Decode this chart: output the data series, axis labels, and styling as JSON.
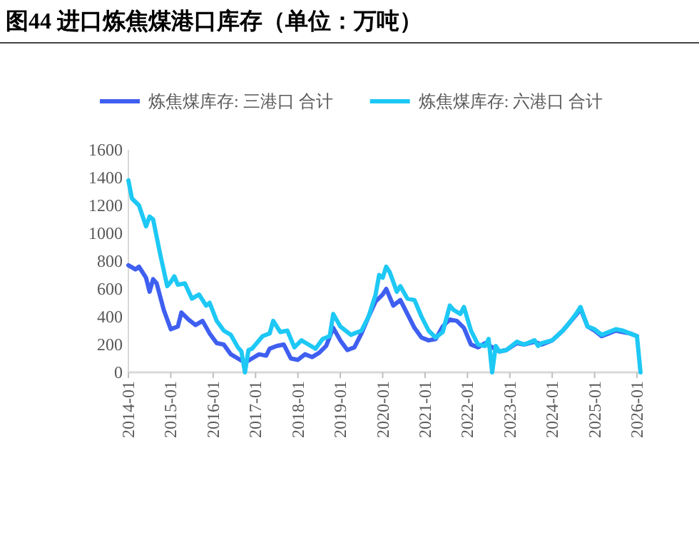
{
  "chart_data": {
    "type": "line",
    "title": "图44 进口炼焦煤港口库存（单位：万吨）",
    "xlim": [
      "2014-01",
      "2026-02"
    ],
    "xticks": [
      {
        "value": "2014-01",
        "label": "2014-01"
      },
      {
        "value": "2015-01",
        "label": "2015-01"
      },
      {
        "value": "2016-01",
        "label": "2016-01"
      },
      {
        "value": "2017-01",
        "label": "2017-01"
      },
      {
        "value": "2018-01",
        "label": "2018-01"
      },
      {
        "value": "2019-01",
        "label": "2019-01"
      },
      {
        "value": "2020-01",
        "label": "2020-01"
      },
      {
        "value": "2021-01",
        "label": "2021-01"
      },
      {
        "value": "2022-01",
        "label": "2022-01"
      },
      {
        "value": "2023-01",
        "label": "2023-01"
      },
      {
        "value": "2024-01",
        "label": "2024-01"
      },
      {
        "value": "2025-01",
        "label": "2025-01"
      },
      {
        "value": "2026-01",
        "label": "2026-01"
      }
    ],
    "ylim": [
      0,
      1600
    ],
    "yticks": [
      0,
      200,
      400,
      600,
      800,
      1000,
      1200,
      1400,
      1600
    ],
    "grid": false,
    "legend": "top",
    "marker": "none",
    "line_style": "solid",
    "series": [
      {
        "name": "炼焦煤库存: 三港口 合计",
        "color": "#3f5ff0",
        "x": [
          "2014-01",
          "2014-03",
          "2014-04",
          "2014-06",
          "2014-07",
          "2014-08",
          "2014-09",
          "2014-11",
          "2015-01",
          "2015-03",
          "2015-04",
          "2015-06",
          "2015-08",
          "2015-10",
          "2015-12",
          "2016-02",
          "2016-04",
          "2016-06",
          "2016-08",
          "2016-10",
          "2016-12",
          "2017-02",
          "2017-04",
          "2017-05",
          "2017-07",
          "2017-09",
          "2017-11",
          "2018-01",
          "2018-03",
          "2018-05",
          "2018-07",
          "2018-09",
          "2018-11",
          "2019-01",
          "2019-03",
          "2019-05",
          "2019-07",
          "2019-09",
          "2019-11",
          "2020-01",
          "2020-02",
          "2020-04",
          "2020-06",
          "2020-08",
          "2020-10",
          "2020-12",
          "2021-02",
          "2021-04",
          "2021-06",
          "2021-08",
          "2021-10",
          "2021-12",
          "2022-02",
          "2022-04",
          "2022-06",
          "2022-08",
          "2022-10",
          "2022-12",
          "2023-03",
          "2023-05",
          "2023-08",
          "2023-10",
          "2024-01",
          "2024-04",
          "2024-06",
          "2024-08",
          "2024-09",
          "2024-11",
          "2025-01",
          "2025-03",
          "2025-05",
          "2025-07",
          "2025-09",
          "2025-11",
          "2026-01"
        ],
        "values": [
          770,
          740,
          760,
          680,
          580,
          670,
          640,
          450,
          310,
          330,
          430,
          380,
          340,
          370,
          280,
          210,
          200,
          130,
          100,
          70,
          100,
          130,
          120,
          170,
          190,
          200,
          100,
          90,
          130,
          110,
          140,
          190,
          320,
          230,
          160,
          180,
          280,
          400,
          510,
          560,
          600,
          480,
          520,
          420,
          320,
          250,
          230,
          240,
          330,
          380,
          370,
          320,
          200,
          180,
          210,
          180,
          150,
          160,
          210,
          200,
          220,
          200,
          230,
          300,
          360,
          420,
          460,
          330,
          300,
          260,
          280,
          300,
          290,
          280,
          260
        ]
      },
      {
        "name": "炼焦煤库存: 六港口 合计",
        "color": "#1ec8f5",
        "x": [
          "2014-01",
          "2014-02",
          "2014-04",
          "2014-06",
          "2014-07",
          "2014-08",
          "2014-10",
          "2014-12",
          "2015-01",
          "2015-02",
          "2015-03",
          "2015-05",
          "2015-07",
          "2015-09",
          "2015-11",
          "2015-12",
          "2016-02",
          "2016-04",
          "2016-06",
          "2016-08",
          "2016-09",
          "2016-10",
          "2016-11",
          "2016-12",
          "2017-03",
          "2017-05",
          "2017-06",
          "2017-08",
          "2017-10",
          "2017-12",
          "2018-02",
          "2018-04",
          "2018-06",
          "2018-08",
          "2018-10",
          "2018-11",
          "2019-01",
          "2019-04",
          "2019-07",
          "2019-09",
          "2019-11",
          "2019-12",
          "2020-01",
          "2020-02",
          "2020-03",
          "2020-05",
          "2020-06",
          "2020-08",
          "2020-10",
          "2020-12",
          "2021-02",
          "2021-04",
          "2021-06",
          "2021-08",
          "2021-09",
          "2021-11",
          "2021-12",
          "2022-02",
          "2022-04",
          "2022-06",
          "2022-07",
          "2022-08",
          "2022-09",
          "2022-10",
          "2022-12",
          "2023-03",
          "2023-05",
          "2023-08",
          "2023-09",
          "2023-10",
          "2024-01",
          "2024-04",
          "2024-06",
          "2024-08",
          "2024-09",
          "2024-10",
          "2024-11",
          "2025-01",
          "2025-03",
          "2025-05",
          "2025-07",
          "2025-09",
          "2025-11",
          "2026-01",
          "2026-02"
        ],
        "values": [
          1380,
          1250,
          1200,
          1050,
          1120,
          1100,
          850,
          620,
          650,
          690,
          630,
          640,
          530,
          560,
          480,
          500,
          370,
          300,
          270,
          180,
          150,
          0,
          160,
          170,
          260,
          280,
          370,
          290,
          300,
          180,
          230,
          200,
          170,
          240,
          260,
          420,
          330,
          270,
          300,
          400,
          560,
          700,
          680,
          760,
          720,
          580,
          620,
          530,
          520,
          400,
          300,
          250,
          290,
          480,
          450,
          420,
          470,
          300,
          200,
          190,
          240,
          0,
          190,
          150,
          160,
          220,
          200,
          230,
          190,
          210,
          230,
          300,
          360,
          430,
          470,
          400,
          330,
          310,
          270,
          290,
          310,
          300,
          280,
          260,
          0
        ]
      }
    ]
  }
}
